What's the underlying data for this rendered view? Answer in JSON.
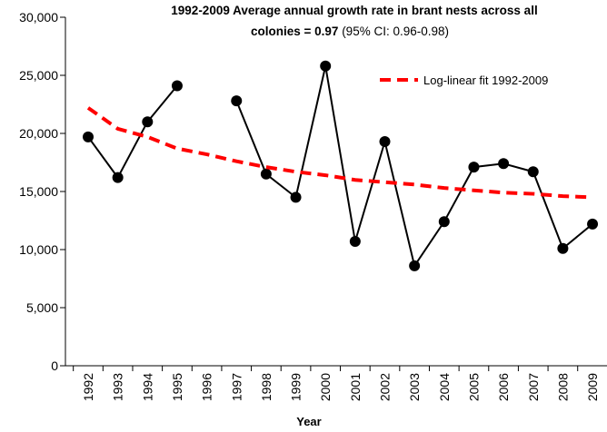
{
  "chart_data": {
    "type": "line",
    "title": [
      "1992-2009 Average annual growth rate in brant nests across all",
      "colonies = 0.97"
    ],
    "subtitle": "(95% CI: 0.96-0.98)",
    "x_label": "Year",
    "categories": [
      "1992",
      "1993",
      "1994",
      "1995",
      "1996",
      "1997",
      "1998",
      "1999",
      "2000",
      "2001",
      "2002",
      "2003",
      "2004",
      "2005",
      "2006",
      "2007",
      "2008",
      "2009"
    ],
    "series": [
      {
        "name": "Brant nests",
        "color": "#000000",
        "style": "solid-markers",
        "values": [
          19700,
          16200,
          21000,
          24100,
          null,
          22800,
          16500,
          14500,
          25800,
          10700,
          19300,
          8600,
          12400,
          17100,
          17400,
          16700,
          10100,
          12200
        ]
      },
      {
        "name": "Log-linear fit 1992-2009",
        "color": "#ff0000",
        "style": "dashed",
        "values": [
          22200,
          20400,
          19700,
          18700,
          18200,
          17600,
          17100,
          16700,
          16400,
          16000,
          15800,
          15600,
          15300,
          15100,
          14900,
          14800,
          14600,
          14500
        ]
      }
    ],
    "legend_series": [
      1
    ],
    "ylim": [
      0,
      30000
    ],
    "yticks": [
      0,
      {
        "value": 5000,
        "label": "5,000"
      },
      {
        "value": 10000,
        "label": "10,000"
      },
      {
        "value": 15000,
        "label": "15,000"
      },
      {
        "value": 20000,
        "label": "20,000"
      },
      {
        "value": 25000,
        "label": "25,000"
      },
      {
        "value": 30000,
        "label": "30,000"
      }
    ]
  }
}
